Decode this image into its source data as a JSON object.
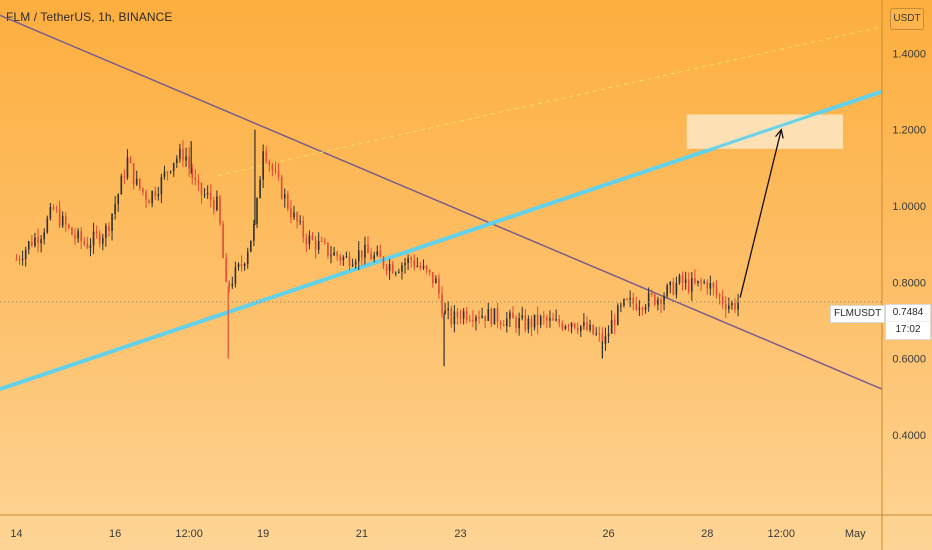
{
  "header": {
    "title": "FLM / TetherUS, 1h, BINANCE"
  },
  "currency": "USDT",
  "symbol_label": "FLMUSDT",
  "last_price": "0.7484",
  "countdown": "17:02",
  "colors": {
    "up": "#2f2f2f",
    "down": "#e34b35",
    "uptrend": "#62d1ea",
    "downtrend": "#7b5d8c",
    "dashed": "#f2e16a",
    "target_box": "#fde8c4",
    "arrow": "#111111"
  },
  "chart_data": {
    "type": "candlestick",
    "title": "FLM / TetherUS, 1h, BINANCE",
    "y_tick_labels": [
      "1.4000",
      "1.2000",
      "1.0000",
      "0.8000",
      "0.6000",
      "0.4000"
    ],
    "y_ticks": [
      1.4,
      1.2,
      1.0,
      0.8,
      0.6,
      0.4
    ],
    "ylim": [
      0.19,
      1.54
    ],
    "x_tick_labels": [
      "14",
      "16",
      "12:00",
      "19",
      "21",
      "23",
      "26",
      "28",
      "12:00",
      "May"
    ],
    "x_ticks": [
      0,
      48,
      84,
      120,
      168,
      216,
      288,
      336,
      372,
      408
    ],
    "xlim": [
      -8,
      421
    ],
    "grid": false,
    "last_price": 0.7484,
    "price_path": [
      [
        0,
        0.86
      ],
      [
        6,
        0.9
      ],
      [
        12,
        0.93
      ],
      [
        18,
        0.99
      ],
      [
        22,
        0.96
      ],
      [
        28,
        0.92
      ],
      [
        34,
        0.9
      ],
      [
        40,
        0.92
      ],
      [
        44,
        0.94
      ],
      [
        50,
        1.04
      ],
      [
        54,
        1.12
      ],
      [
        58,
        1.06
      ],
      [
        64,
        1.02
      ],
      [
        70,
        1.06
      ],
      [
        76,
        1.12
      ],
      [
        82,
        1.14
      ],
      [
        84,
        1.1
      ],
      [
        88,
        1.04
      ],
      [
        94,
        1.02
      ],
      [
        98,
        1.0
      ],
      [
        102,
        0.78
      ],
      [
        104,
        0.8
      ],
      [
        110,
        0.85
      ],
      [
        116,
        0.95
      ],
      [
        120,
        1.16
      ],
      [
        124,
        1.1
      ],
      [
        128,
        1.05
      ],
      [
        134,
        0.98
      ],
      [
        140,
        0.92
      ],
      [
        146,
        0.9
      ],
      [
        152,
        0.88
      ],
      [
        160,
        0.86
      ],
      [
        168,
        0.88
      ],
      [
        176,
        0.86
      ],
      [
        184,
        0.84
      ],
      [
        192,
        0.86
      ],
      [
        200,
        0.82
      ],
      [
        204,
        0.8
      ],
      [
        208,
        0.72
      ],
      [
        212,
        0.7
      ],
      [
        216,
        0.72
      ],
      [
        224,
        0.72
      ],
      [
        232,
        0.71
      ],
      [
        240,
        0.7
      ],
      [
        248,
        0.69
      ],
      [
        256,
        0.7
      ],
      [
        262,
        0.69
      ],
      [
        270,
        0.7
      ],
      [
        276,
        0.68
      ],
      [
        282,
        0.66
      ],
      [
        286,
        0.64
      ],
      [
        290,
        0.7
      ],
      [
        296,
        0.74
      ],
      [
        304,
        0.75
      ],
      [
        312,
        0.76
      ],
      [
        318,
        0.78
      ],
      [
        322,
        0.8
      ],
      [
        330,
        0.79
      ],
      [
        336,
        0.8
      ],
      [
        340,
        0.77
      ],
      [
        344,
        0.75
      ],
      [
        348,
        0.74
      ],
      [
        352,
        0.75
      ]
    ],
    "wicks": [
      {
        "x": 103,
        "low": 0.6
      },
      {
        "x": 208,
        "low": 0.58
      },
      {
        "x": 285,
        "low": 0.6
      },
      {
        "x": 116,
        "high": 1.2
      },
      {
        "x": 85,
        "high": 1.17
      }
    ],
    "trendlines": [
      {
        "name": "downtrend",
        "x1": -8,
        "y1": 1.5,
        "x2": 421,
        "y2": 0.52
      },
      {
        "name": "uptrend",
        "x1": -8,
        "y1": 0.52,
        "x2": 421,
        "y2": 1.3
      },
      {
        "name": "dashed",
        "x1": 98,
        "y1": 1.08,
        "x2": 421,
        "y2": 1.47
      }
    ],
    "target_zone": {
      "x1": 326,
      "x2": 402,
      "y1": 1.15,
      "y2": 1.24
    },
    "arrow": {
      "x1": 352,
      "y1": 0.76,
      "x2": 372,
      "y2": 1.2
    }
  }
}
